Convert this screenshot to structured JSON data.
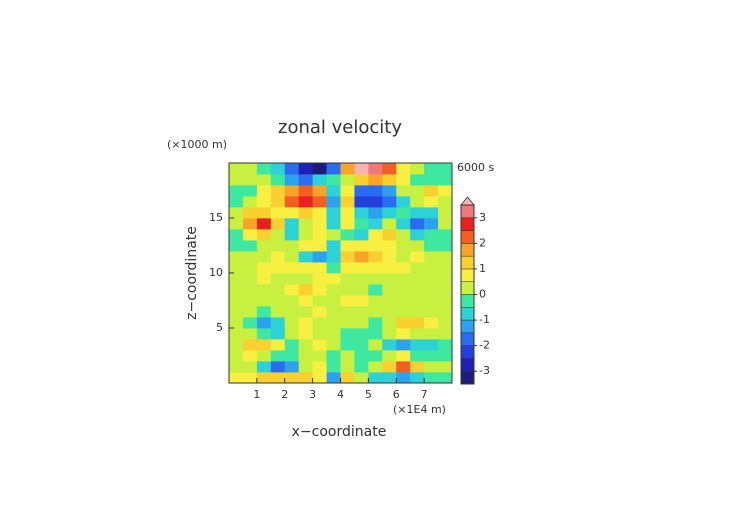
{
  "chart_data": {
    "type": "contourf",
    "title": "zonal velocity",
    "x_label": "x−coordinate",
    "y_label": "z−coordinate",
    "x_unit": "(×1E4 m)",
    "y_unit": "(×1000 m)",
    "time_label": "6000 s",
    "xlim": [
      0,
      8
    ],
    "ylim": [
      0,
      20
    ],
    "xticks": [
      1,
      2,
      3,
      4,
      5,
      6,
      7
    ],
    "yticks": [
      5,
      10,
      15
    ],
    "x": [
      0.25,
      0.75,
      1.25,
      1.75,
      2.25,
      2.75,
      3.25,
      3.75,
      4.25,
      4.75,
      5.25,
      5.75,
      6.25,
      6.75,
      7.25,
      7.75
    ],
    "y": [
      0.5,
      1.5,
      2.5,
      3.5,
      4.5,
      5.5,
      6.5,
      7.5,
      8.5,
      9.5,
      10.5,
      11.5,
      12.5,
      13.5,
      14.5,
      15.5,
      16.5,
      17.5,
      18.5,
      19.5
    ],
    "z": [
      [
        0.6,
        0.8,
        1.2,
        1.4,
        1.3,
        1.0,
        0.6,
        -1.2,
        1.0,
        0.3,
        -0.6,
        -1.0,
        -1.2,
        -0.8,
        -0.4,
        -0.2
      ],
      [
        0.4,
        0.3,
        -0.8,
        -2.0,
        -1.2,
        0.2,
        0.5,
        -0.3,
        0.3,
        -0.5,
        0.4,
        1.4,
        2.2,
        1.0,
        0.3,
        0.2
      ],
      [
        0.2,
        0.6,
        0.4,
        -0.4,
        -0.2,
        0.4,
        0.2,
        -0.2,
        0.2,
        -0.3,
        -0.5,
        0.3,
        0.5,
        -0.5,
        -0.4,
        -0.2
      ],
      [
        0.4,
        1.0,
        1.3,
        0.9,
        -0.3,
        0.3,
        0.5,
        0.2,
        -0.2,
        -0.5,
        0.2,
        -0.8,
        -1.2,
        -1.0,
        -0.6,
        -0.3
      ],
      [
        0.3,
        0.2,
        -0.3,
        -0.6,
        0.2,
        0.5,
        0.3,
        0.2,
        -0.2,
        -0.3,
        -0.5,
        0.3,
        0.6,
        0.4,
        0.2,
        0.1
      ],
      [
        0.2,
        -0.4,
        -1.4,
        -1.0,
        0.1,
        0.6,
        0.4,
        0.3,
        0.3,
        0.4,
        -0.5,
        0.2,
        1.0,
        1.4,
        0.5,
        0.3
      ],
      [
        0.3,
        0.2,
        -0.5,
        0.0,
        0.4,
        0.3,
        0.5,
        0.4,
        0.4,
        0.3,
        0.1,
        0.2,
        0.4,
        0.3,
        0.2,
        0.3
      ],
      [
        0.4,
        0.3,
        0.2,
        0.1,
        0.3,
        0.6,
        0.4,
        0.3,
        0.5,
        0.6,
        0.2,
        0.3,
        0.3,
        0.4,
        0.4,
        0.3
      ],
      [
        0.3,
        0.3,
        0.4,
        0.3,
        0.6,
        1.1,
        0.5,
        0.4,
        0.4,
        0.3,
        -0.3,
        0.2,
        0.3,
        0.3,
        0.3,
        0.3
      ],
      [
        0.3,
        0.4,
        0.5,
        0.4,
        0.3,
        0.4,
        0.6,
        0.5,
        0.4,
        0.3,
        0.3,
        0.2,
        0.1,
        0.2,
        0.3,
        0.3
      ],
      [
        0.2,
        0.3,
        0.6,
        0.8,
        0.7,
        0.6,
        0.6,
        -0.3,
        0.8,
        0.6,
        0.6,
        0.6,
        0.5,
        0.3,
        0.2,
        0.3
      ],
      [
        0.0,
        0.1,
        0.4,
        0.5,
        0.2,
        -0.8,
        -1.4,
        -1.0,
        1.2,
        1.6,
        1.2,
        0.5,
        0.4,
        0.5,
        0.3,
        0.1
      ],
      [
        -0.4,
        -0.3,
        0.2,
        0.4,
        0.3,
        0.6,
        0.5,
        -0.6,
        0.7,
        0.6,
        0.5,
        0.6,
        0.4,
        0.2,
        -0.2,
        -0.3
      ],
      [
        -0.3,
        0.6,
        1.2,
        0.4,
        -0.8,
        0.3,
        0.8,
        0.2,
        -0.2,
        -0.6,
        0.6,
        1.2,
        0.2,
        -0.8,
        -0.4,
        -0.2
      ],
      [
        0.2,
        1.8,
        2.6,
        1.0,
        -0.6,
        0.4,
        0.6,
        -0.6,
        0.6,
        -0.4,
        -0.6,
        0.4,
        -1.0,
        -2.0,
        -1.2,
        0.2
      ],
      [
        0.3,
        1.0,
        1.2,
        0.6,
        0.8,
        1.4,
        0.8,
        -0.8,
        0.8,
        -0.8,
        -1.4,
        -0.8,
        -0.5,
        -0.8,
        -0.6,
        0.2
      ],
      [
        -0.2,
        0.4,
        0.8,
        1.2,
        2.0,
        2.6,
        2.2,
        -1.4,
        1.4,
        -2.2,
        -2.4,
        -1.8,
        -0.6,
        0.2,
        0.8,
        0.4
      ],
      [
        -0.5,
        -0.3,
        0.6,
        1.0,
        1.6,
        2.2,
        1.8,
        -0.6,
        0.6,
        -1.6,
        -2.0,
        -1.2,
        0.2,
        0.3,
        1.4,
        0.6
      ],
      [
        0.3,
        0.4,
        0.2,
        -0.4,
        -1.2,
        -1.6,
        -1.0,
        -0.4,
        0.4,
        1.2,
        1.8,
        1.2,
        0.5,
        -0.3,
        -0.5,
        -0.2
      ],
      [
        0.4,
        0.2,
        -0.2,
        -0.8,
        -1.8,
        -2.6,
        -3.2,
        -1.6,
        1.8,
        3.6,
        3.2,
        2.2,
        0.8,
        0.2,
        -0.4,
        -0.3
      ]
    ],
    "colorbar": {
      "levels": [
        -3.5,
        -3,
        -2.5,
        -2,
        -1.5,
        -1,
        -0.5,
        0,
        0.5,
        1,
        1.5,
        2,
        2.5,
        3,
        3.5
      ],
      "ticks": [
        -3,
        -2,
        -1,
        0,
        1,
        2,
        3
      ],
      "colors": [
        "#1c1c7a",
        "#1e22b4",
        "#2440dc",
        "#2a6cf0",
        "#2aa2f0",
        "#2cd2d6",
        "#3ee8a0",
        "#c8f040",
        "#f8f040",
        "#f8d030",
        "#f8a428",
        "#f06020",
        "#e82020",
        "#f07878",
        "#f8b4b4"
      ]
    }
  }
}
